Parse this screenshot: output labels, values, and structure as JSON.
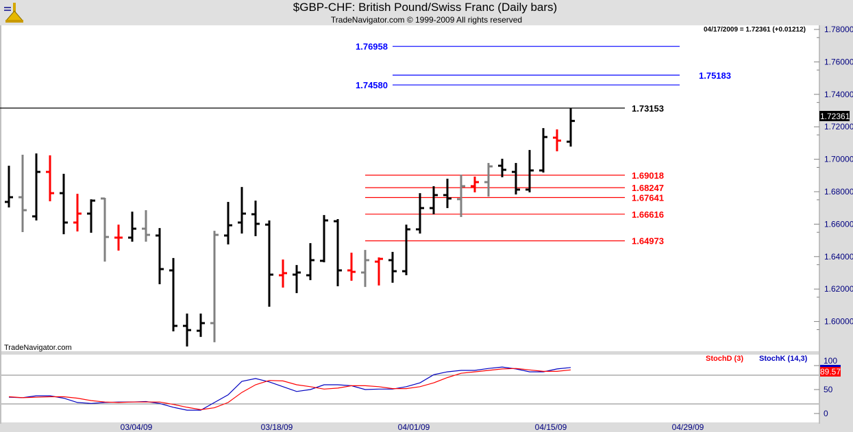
{
  "header": {
    "title": "$GBP-CHF:  British Pound/Swiss Franc  (Daily bars)",
    "subtitle": "TradeNavigator.com © 1999-2009 All rights reserved"
  },
  "watermark": "TradeNavigator.com",
  "quote_readout": "04/17/2009 = 1.72361 (+0.01212)",
  "last_price_label": "1.72361",
  "colors": {
    "up": "#000000",
    "neutral": "#808080",
    "down": "#ff0000",
    "blue_level": "#0000ff",
    "red_level": "#ff0000",
    "stoch_k": "#0000c0",
    "stoch_d": "#ff0000"
  },
  "chart_data": [
    {
      "type": "ohlc",
      "title": "$GBP-CHF Daily bars",
      "ylim": [
        1.58,
        1.79
      ],
      "y_ticks": [
        "1.78000",
        "1.76000",
        "1.74000",
        "1.72000",
        "1.70000",
        "1.68000",
        "1.66000",
        "1.64000",
        "1.62000",
        "1.60000"
      ],
      "y_tick_values": [
        1.78,
        1.76,
        1.74,
        1.72,
        1.7,
        1.68,
        1.66,
        1.64,
        1.62,
        1.6
      ],
      "x_ticks": [
        "03/04/09",
        "03/18/09",
        "04/01/09",
        "04/15/09",
        "04/29/09"
      ],
      "x_tick_bar_index": [
        9.3,
        19.55,
        29.55,
        39.55,
        49.55
      ],
      "bars": [
        {
          "o": 1.6737,
          "h": 1.696,
          "l": 1.6703,
          "c": 1.6766,
          "color": "up"
        },
        {
          "o": 1.6766,
          "h": 1.7028,
          "l": 1.6551,
          "c": 1.6686,
          "color": "neutral"
        },
        {
          "o": 1.6648,
          "h": 1.7036,
          "l": 1.6623,
          "c": 1.6922,
          "color": "up"
        },
        {
          "o": 1.6922,
          "h": 1.7024,
          "l": 1.6741,
          "c": 1.6791,
          "color": "down"
        },
        {
          "o": 1.6791,
          "h": 1.691,
          "l": 1.6538,
          "c": 1.661,
          "color": "up"
        },
        {
          "o": 1.661,
          "h": 1.6787,
          "l": 1.6555,
          "c": 1.6665,
          "color": "down"
        },
        {
          "o": 1.6665,
          "h": 1.6753,
          "l": 1.6547,
          "c": 1.6745,
          "color": "up"
        },
        {
          "o": 1.6758,
          "h": 1.6762,
          "l": 1.6369,
          "c": 1.6521,
          "color": "neutral"
        },
        {
          "o": 1.6517,
          "h": 1.6597,
          "l": 1.6437,
          "c": 1.6517,
          "color": "down"
        },
        {
          "o": 1.6517,
          "h": 1.6677,
          "l": 1.6492,
          "c": 1.6572,
          "color": "up"
        },
        {
          "o": 1.6572,
          "h": 1.6686,
          "l": 1.6492,
          "c": 1.6534,
          "color": "neutral"
        },
        {
          "o": 1.653,
          "h": 1.6576,
          "l": 1.623,
          "c": 1.6323,
          "color": "up"
        },
        {
          "o": 1.6315,
          "h": 1.6391,
          "l": 1.5939,
          "c": 1.5973,
          "color": "up"
        },
        {
          "o": 1.5973,
          "h": 1.6049,
          "l": 1.5846,
          "c": 1.5947,
          "color": "up"
        },
        {
          "o": 1.5943,
          "h": 1.6049,
          "l": 1.5905,
          "c": 1.599,
          "color": "up"
        },
        {
          "o": 1.599,
          "h": 1.6559,
          "l": 1.5872,
          "c": 1.6534,
          "color": "neutral"
        },
        {
          "o": 1.653,
          "h": 1.6737,
          "l": 1.6475,
          "c": 1.6593,
          "color": "up"
        },
        {
          "o": 1.661,
          "h": 1.6829,
          "l": 1.6542,
          "c": 1.6665,
          "color": "up"
        },
        {
          "o": 1.6661,
          "h": 1.6745,
          "l": 1.6526,
          "c": 1.6602,
          "color": "up"
        },
        {
          "o": 1.6597,
          "h": 1.6623,
          "l": 1.6091,
          "c": 1.6289,
          "color": "up"
        },
        {
          "o": 1.6285,
          "h": 1.6382,
          "l": 1.6209,
          "c": 1.6298,
          "color": "down"
        },
        {
          "o": 1.6289,
          "h": 1.6348,
          "l": 1.6175,
          "c": 1.6302,
          "color": "up"
        },
        {
          "o": 1.6285,
          "h": 1.6483,
          "l": 1.6255,
          "c": 1.6378,
          "color": "up"
        },
        {
          "o": 1.6374,
          "h": 1.6656,
          "l": 1.6365,
          "c": 1.6623,
          "color": "up"
        },
        {
          "o": 1.6618,
          "h": 1.6631,
          "l": 1.6217,
          "c": 1.6315,
          "color": "up"
        },
        {
          "o": 1.6315,
          "h": 1.6424,
          "l": 1.6251,
          "c": 1.6306,
          "color": "down"
        },
        {
          "o": 1.6302,
          "h": 1.6441,
          "l": 1.6213,
          "c": 1.6378,
          "color": "neutral"
        },
        {
          "o": 1.6369,
          "h": 1.6395,
          "l": 1.6222,
          "c": 1.6386,
          "color": "down"
        },
        {
          "o": 1.6378,
          "h": 1.6429,
          "l": 1.6239,
          "c": 1.631,
          "color": "up"
        },
        {
          "o": 1.631,
          "h": 1.6597,
          "l": 1.6285,
          "c": 1.6568,
          "color": "up"
        },
        {
          "o": 1.6568,
          "h": 1.6791,
          "l": 1.6542,
          "c": 1.6699,
          "color": "up"
        },
        {
          "o": 1.6699,
          "h": 1.6834,
          "l": 1.6661,
          "c": 1.6779,
          "color": "up"
        },
        {
          "o": 1.6779,
          "h": 1.688,
          "l": 1.6699,
          "c": 1.6758,
          "color": "up"
        },
        {
          "o": 1.6754,
          "h": 1.6905,
          "l": 1.6644,
          "c": 1.6834,
          "color": "neutral"
        },
        {
          "o": 1.6834,
          "h": 1.6893,
          "l": 1.6796,
          "c": 1.6859,
          "color": "down"
        },
        {
          "o": 1.6859,
          "h": 1.6977,
          "l": 1.677,
          "c": 1.6956,
          "color": "neutral"
        },
        {
          "o": 1.696,
          "h": 1.7003,
          "l": 1.6889,
          "c": 1.6935,
          "color": "up"
        },
        {
          "o": 1.6922,
          "h": 1.6977,
          "l": 1.6783,
          "c": 1.6813,
          "color": "up"
        },
        {
          "o": 1.6813,
          "h": 1.7057,
          "l": 1.6796,
          "c": 1.6931,
          "color": "up"
        },
        {
          "o": 1.6931,
          "h": 1.7192,
          "l": 1.6918,
          "c": 1.7137,
          "color": "up"
        },
        {
          "o": 1.7133,
          "h": 1.7184,
          "l": 1.7049,
          "c": 1.7115,
          "color": "down"
        },
        {
          "o": 1.7108,
          "h": 1.7315,
          "l": 1.7078,
          "c": 1.72361,
          "color": "up"
        }
      ],
      "levels": [
        {
          "label": "1.76958",
          "value": 1.76958,
          "color": "blue",
          "label_side": "left"
        },
        {
          "label": "1.75183",
          "value": 1.75183,
          "color": "blue",
          "label_side": "right"
        },
        {
          "label": "1.74580",
          "value": 1.7458,
          "color": "blue",
          "label_side": "left"
        },
        {
          "label": "1.73153",
          "value": 1.73153,
          "color": "black",
          "label_side": "right"
        },
        {
          "label": "1.69018",
          "value": 1.69018,
          "color": "red",
          "label_side": "right"
        },
        {
          "label": "1.68247",
          "value": 1.68247,
          "color": "red",
          "label_side": "right"
        },
        {
          "label": "1.67641",
          "value": 1.67641,
          "color": "red",
          "label_side": "right"
        },
        {
          "label": "1.66616",
          "value": 1.66616,
          "color": "red",
          "label_side": "right"
        },
        {
          "label": "1.64973",
          "value": 1.64973,
          "color": "red",
          "label_side": "right"
        }
      ]
    },
    {
      "type": "line",
      "title": "Stochastic",
      "ylim": [
        0,
        100
      ],
      "y_ticks": [
        "100",
        "50",
        "0"
      ],
      "y_tick_values": [
        100,
        50,
        0
      ],
      "reference_lines": [
        80,
        20
      ],
      "legend": [
        "StochD (3)",
        "StochK (14,3)"
      ],
      "legend_placement": "top-right",
      "value_label": "89.57",
      "series": [
        {
          "name": "StochK (14,3)",
          "color": "stoch_k",
          "values": [
            34,
            33,
            37,
            37,
            32,
            23,
            21,
            23,
            24,
            24,
            25,
            21,
            13,
            7,
            7,
            23,
            39,
            67,
            73,
            66,
            56,
            46,
            50,
            60,
            60,
            58,
            50,
            51,
            51,
            56,
            64,
            81,
            87,
            90,
            90,
            94,
            97,
            93,
            87,
            87,
            93,
            96
          ]
        },
        {
          "name": "StochD (3)",
          "color": "stoch_d",
          "values": [
            35,
            33,
            34,
            35,
            35,
            32,
            27,
            24,
            23,
            24,
            24,
            24,
            19,
            13,
            8,
            12,
            23,
            44,
            60,
            69,
            68,
            60,
            56,
            51,
            53,
            58,
            58,
            56,
            52,
            52,
            56,
            64,
            75,
            84,
            87,
            90,
            93,
            94,
            91,
            88,
            88,
            91
          ]
        }
      ]
    }
  ]
}
